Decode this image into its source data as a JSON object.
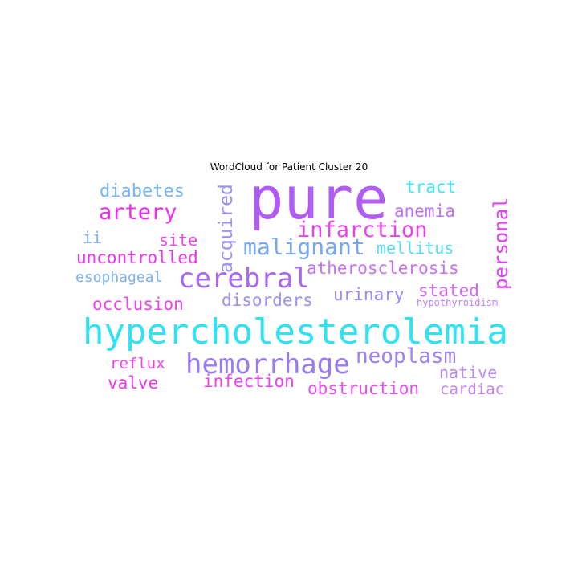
{
  "chart_data": {
    "type": "wordcloud",
    "title": "WordCloud for Patient Cluster 20",
    "words": [
      {
        "text": "pure",
        "color": "#b05cf5"
      },
      {
        "text": "hypercholesterolemia",
        "color": "#2ee3f5"
      },
      {
        "text": "cerebral",
        "color": "#a868f5"
      },
      {
        "text": "hemorrhage",
        "color": "#9a7af2"
      },
      {
        "text": "malignant",
        "color": "#74a6f2"
      },
      {
        "text": "infarction",
        "color": "#e842f0"
      },
      {
        "text": "artery",
        "color": "#f02cf0"
      },
      {
        "text": "neoplasm",
        "color": "#a080f5"
      },
      {
        "text": "personal",
        "color": "#e03ef2"
      },
      {
        "text": "acquired",
        "color": "#9a90f5"
      },
      {
        "text": "diabetes",
        "color": "#74b6f5"
      },
      {
        "text": "anemia",
        "color": "#c070f5"
      },
      {
        "text": "tract",
        "color": "#3ce8f5"
      },
      {
        "text": "atherosclerosis",
        "color": "#c870f5"
      },
      {
        "text": "uncontrolled",
        "color": "#f034f0"
      },
      {
        "text": "disorders",
        "color": "#9a90f5"
      },
      {
        "text": "urinary",
        "color": "#a088f5"
      },
      {
        "text": "stated",
        "color": "#d068f5"
      },
      {
        "text": "occlusion",
        "color": "#f040f0"
      },
      {
        "text": "mellitus",
        "color": "#50dcf5"
      },
      {
        "text": "site",
        "color": "#f040f0"
      },
      {
        "text": "ii",
        "color": "#7aaef5"
      },
      {
        "text": "esophageal",
        "color": "#7aaef5"
      },
      {
        "text": "infection",
        "color": "#f040f0"
      },
      {
        "text": "obstruction",
        "color": "#e84cf2"
      },
      {
        "text": "valve",
        "color": "#f034f0"
      },
      {
        "text": "reflux",
        "color": "#f040f0"
      },
      {
        "text": "native",
        "color": "#b888f5"
      },
      {
        "text": "cardiac",
        "color": "#c880f5"
      },
      {
        "text": "hypothyroidism",
        "color": "#c080f5"
      }
    ]
  }
}
